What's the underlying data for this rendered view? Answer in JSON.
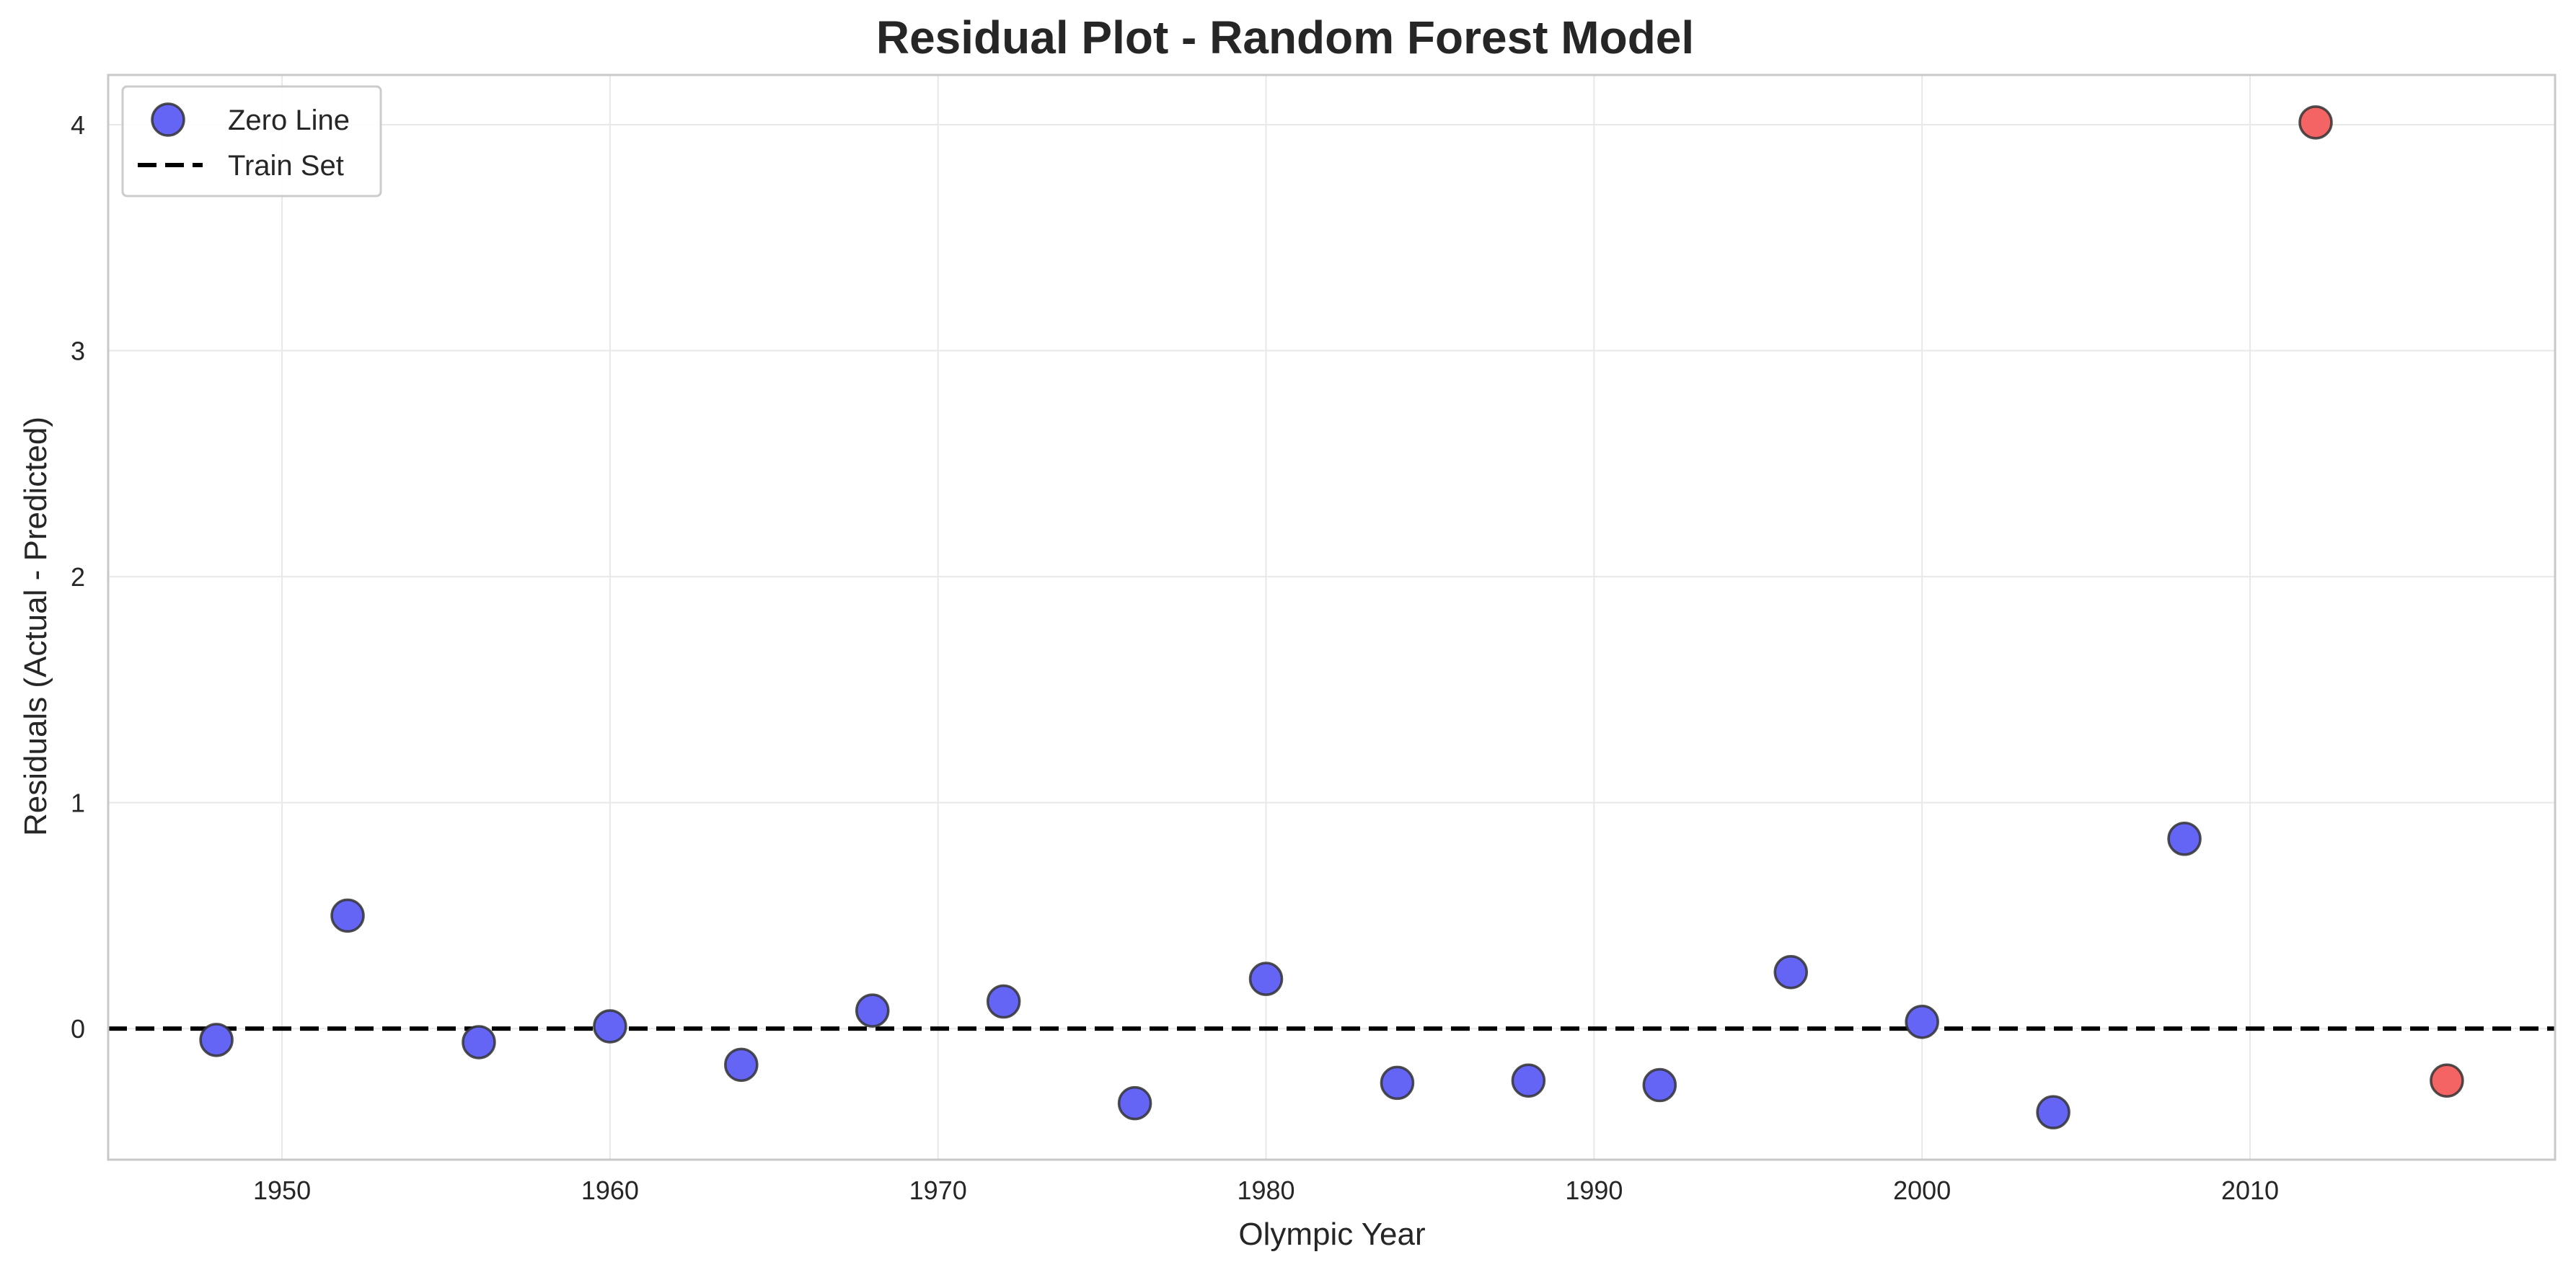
{
  "chart_data": {
    "type": "scatter",
    "title": "Residual Plot - Random Forest Model",
    "xlabel": "Olympic Year",
    "ylabel": "Residuals (Actual - Predicted)",
    "xlim": [
      1944.7,
      2019.3
    ],
    "ylim": [
      -0.58,
      4.22
    ],
    "xticks": [
      1950,
      1960,
      1970,
      1980,
      1990,
      2000,
      2010
    ],
    "yticks": [
      0,
      1,
      2,
      3,
      4
    ],
    "grid": true,
    "legend_position": "top-left",
    "legend": [
      {
        "label": "Zero Line",
        "marker": "circle",
        "color": "#6464f5"
      },
      {
        "label": "Train Set",
        "marker": "dashed-line",
        "color": "#000000"
      }
    ],
    "reference_line": {
      "y": 0,
      "style": "dashed",
      "color": "#000000"
    },
    "series": [
      {
        "color": "#6464f5",
        "points": [
          {
            "x": 1948,
            "y": -0.05
          },
          {
            "x": 1952,
            "y": 0.5
          },
          {
            "x": 1956,
            "y": -0.06
          },
          {
            "x": 1960,
            "y": 0.01
          },
          {
            "x": 1964,
            "y": -0.16
          },
          {
            "x": 1968,
            "y": 0.08
          },
          {
            "x": 1972,
            "y": 0.12
          },
          {
            "x": 1976,
            "y": -0.33
          },
          {
            "x": 1980,
            "y": 0.22
          },
          {
            "x": 1984,
            "y": -0.24
          },
          {
            "x": 1988,
            "y": -0.23
          },
          {
            "x": 1992,
            "y": -0.25
          },
          {
            "x": 1996,
            "y": 0.25
          },
          {
            "x": 2000,
            "y": 0.03
          },
          {
            "x": 2004,
            "y": -0.37
          },
          {
            "x": 2008,
            "y": 0.84
          }
        ]
      },
      {
        "color": "#f56464",
        "points": [
          {
            "x": 2012,
            "y": 4.01
          },
          {
            "x": 2016,
            "y": -0.23
          }
        ]
      }
    ]
  }
}
